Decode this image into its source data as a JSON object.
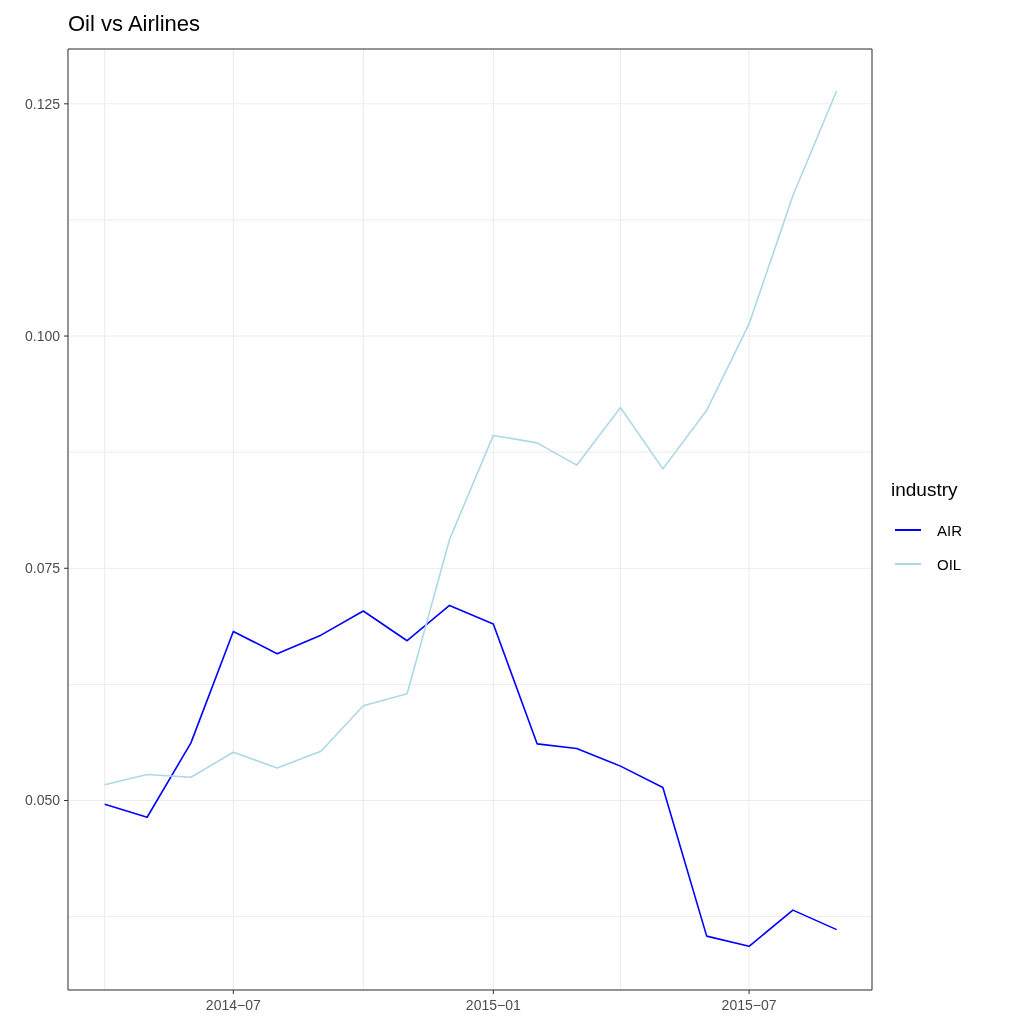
{
  "chart_data": {
    "type": "line",
    "title": "Oil vs Airlines",
    "legend_title": "industry",
    "legend": "right",
    "grid": true,
    "marker": "none",
    "line_style": "solid",
    "x": [
      "2014-04",
      "2014-05",
      "2014-06",
      "2014-07",
      "2014-08",
      "2014-09",
      "2014-10",
      "2014-11",
      "2014-12",
      "2015-01",
      "2015-02",
      "2015-03",
      "2015-04",
      "2015-05",
      "2015-06",
      "2015-07",
      "2015-08",
      "2015-09"
    ],
    "series": [
      {
        "name": "AIR",
        "color": "#0000ff",
        "values": [
          0.0496,
          0.0482,
          0.0562,
          0.0682,
          0.0658,
          0.0678,
          0.0704,
          0.0672,
          0.071,
          0.069,
          0.0561,
          0.0556,
          0.0537,
          0.0514,
          0.0354,
          0.0343,
          0.0382,
          0.0361
        ]
      },
      {
        "name": "OIL",
        "color": "#add8e6",
        "values": [
          0.0517,
          0.0528,
          0.0525,
          0.0552,
          0.0535,
          0.0553,
          0.0602,
          0.0615,
          0.0781,
          0.0893,
          0.0885,
          0.0861,
          0.0923,
          0.0857,
          0.092,
          0.1013,
          0.1151,
          0.1264
        ]
      }
    ],
    "xlim": [
      "2014-03-06",
      "2015-09-26"
    ],
    "xticks": [
      {
        "value": "2014-04",
        "label": null
      },
      {
        "value": "2014-07",
        "label": "2014−07"
      },
      {
        "value": "2014-10",
        "label": null
      },
      {
        "value": "2015-01",
        "label": "2015−01"
      },
      {
        "value": "2015-04",
        "label": null
      },
      {
        "value": "2015-07",
        "label": "2015−07"
      }
    ],
    "ylim": [
      0.0296,
      0.1309
    ],
    "yticks": [
      {
        "value": 0.0375,
        "label": null
      },
      {
        "value": 0.05,
        "label": "0.050"
      },
      {
        "value": 0.0625,
        "label": null
      },
      {
        "value": 0.075,
        "label": "0.075"
      },
      {
        "value": 0.0875,
        "label": null
      },
      {
        "value": 0.1,
        "label": "0.100"
      },
      {
        "value": 0.1125,
        "label": null
      },
      {
        "value": 0.125,
        "label": "0.125"
      }
    ]
  }
}
